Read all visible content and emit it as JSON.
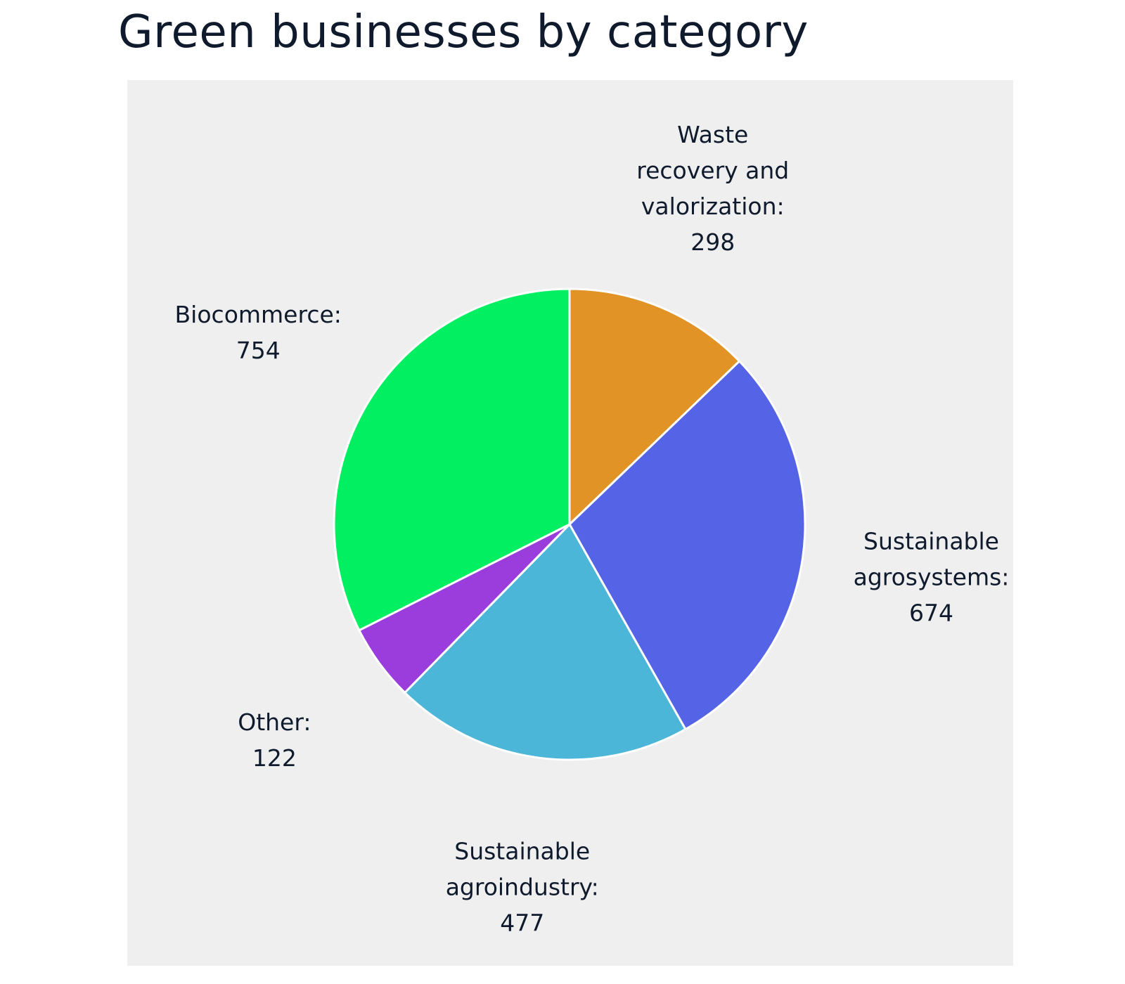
{
  "chart_data": {
    "type": "pie",
    "title": "Green businesses by category",
    "slices": [
      {
        "label": [
          "Waste",
          "recovery and",
          "valorization:"
        ],
        "value": 298,
        "value_text": "298",
        "color": "#E29325"
      },
      {
        "label": [
          "Sustainable",
          "agrosystems:"
        ],
        "value": 674,
        "value_text": "674",
        "color": "#5564E6"
      },
      {
        "label": [
          "Sustainable",
          "agroindustry:"
        ],
        "value": 477,
        "value_text": "477",
        "color": "#4BB6D8"
      },
      {
        "label": [
          "Other:"
        ],
        "value": 122,
        "value_text": "122",
        "color": "#9B3CDD"
      },
      {
        "label": [
          "Biocommerce:"
        ],
        "value": 754,
        "value_text": "754",
        "color": "#02EF62"
      }
    ],
    "start_angle_deg": 0,
    "direction": "clockwise",
    "slice_border_color": "#ffffff",
    "background_color": "#efefef"
  }
}
